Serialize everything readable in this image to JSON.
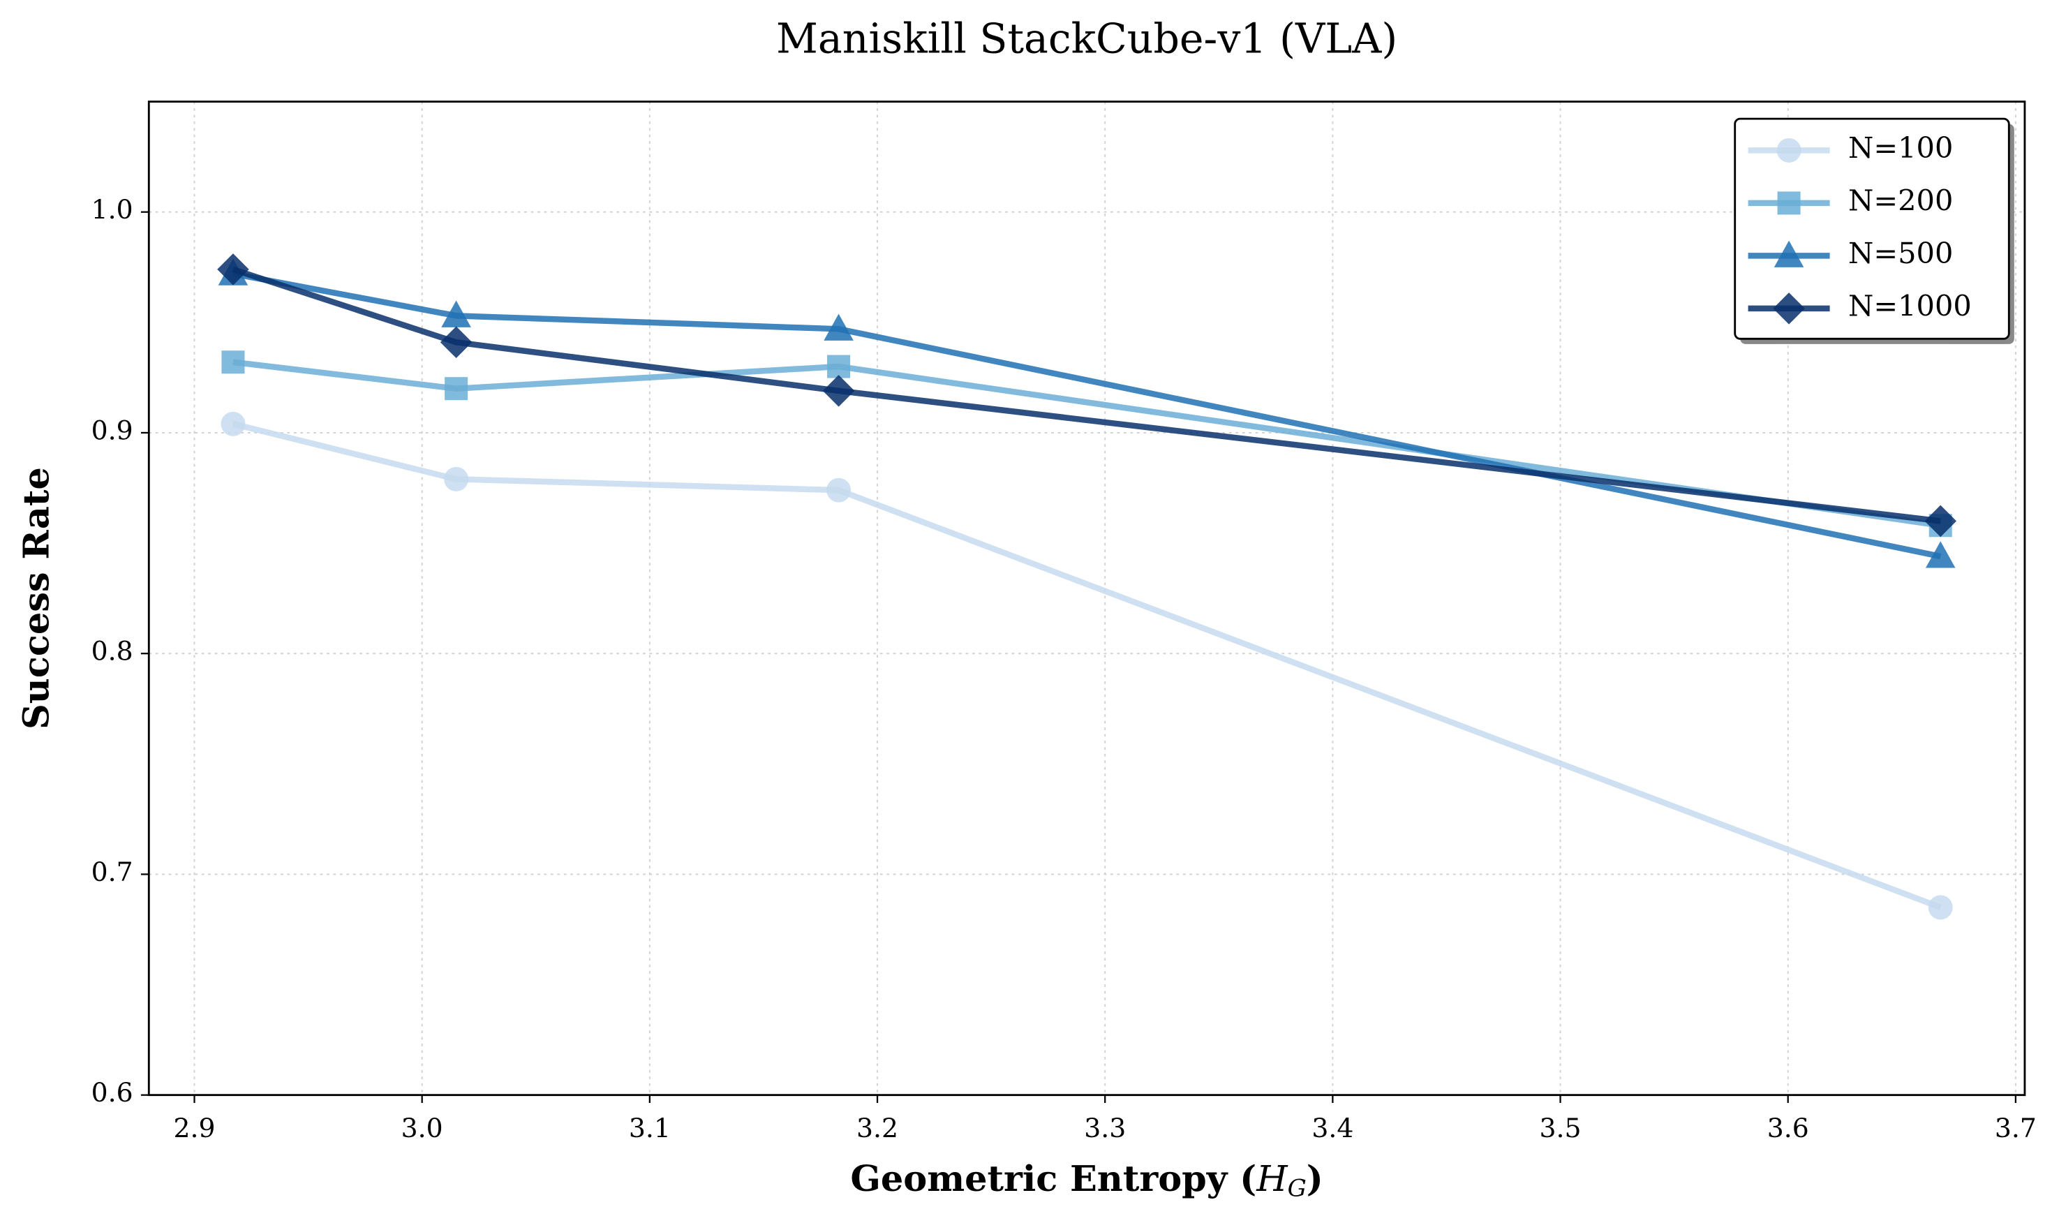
{
  "chart_data": {
    "type": "line",
    "title": "Maniskill StackCube-v1 (VLA)",
    "xlabel_parts": [
      "Geometric Entropy (",
      "H",
      "G",
      ")"
    ],
    "ylabel": "Success Rate",
    "x": [
      2.917,
      3.015,
      3.183,
      3.667
    ],
    "series": [
      {
        "name": "N=100",
        "color": "#c6dbef",
        "marker": "circle",
        "values": [
          0.904,
          0.879,
          0.874,
          0.685
        ]
      },
      {
        "name": "N=200",
        "color": "#6baed6",
        "marker": "square",
        "values": [
          0.932,
          0.92,
          0.93,
          0.858
        ]
      },
      {
        "name": "N=500",
        "color": "#2171b5",
        "marker": "triangle",
        "values": [
          0.972,
          0.953,
          0.947,
          0.844
        ]
      },
      {
        "name": "N=1000",
        "color": "#08306b",
        "marker": "diamond",
        "values": [
          0.974,
          0.941,
          0.919,
          0.86
        ]
      }
    ],
    "xlim": [
      2.88,
      3.704
    ],
    "ylim": [
      0.6,
      1.05
    ],
    "xticks": [
      2.9,
      {
        "value": 3.0,
        "label": "3.0"
      },
      3.1,
      3.2,
      3.3,
      3.4,
      3.5,
      3.6,
      3.7
    ],
    "yticks": [
      0.6,
      0.7,
      0.8,
      0.9,
      {
        "value": 1.0,
        "label": "1.0"
      }
    ],
    "grid": true,
    "legend": "upper right"
  }
}
